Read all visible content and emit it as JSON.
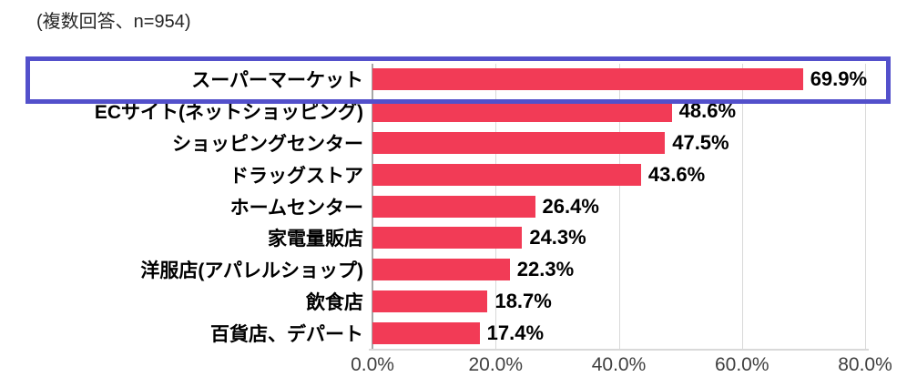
{
  "note": "(複数回答、n=954)",
  "colors": {
    "bar": "#F23B56",
    "highlight_border": "#5350CB",
    "gridline": "#D9D9D9",
    "axis_line": "#A6A6A6",
    "tick_text": "#404040"
  },
  "chart_data": {
    "type": "bar",
    "orientation": "horizontal",
    "title": "(複数回答、n=954)",
    "categories": [
      "スーパーマーケット",
      "ECサイト(ネットショッピング)",
      "ショッピングセンター",
      "ドラッグストア",
      "ホームセンター",
      "家電量販店",
      "洋服店(アパレルショップ)",
      "飲食店",
      "百貨店、デパート"
    ],
    "values": [
      69.9,
      48.6,
      47.5,
      43.6,
      26.4,
      24.3,
      22.3,
      18.7,
      17.4
    ],
    "value_labels": [
      "69.9%",
      "48.6%",
      "47.5%",
      "43.6%",
      "26.4%",
      "24.3%",
      "22.3%",
      "18.7%",
      "17.4%"
    ],
    "xlabel": "",
    "ylabel": "",
    "xlim": [
      0,
      80
    ],
    "x_ticks": [
      {
        "value": 0,
        "label": "0.0%"
      },
      {
        "value": 20,
        "label": "20.0%"
      },
      {
        "value": 40,
        "label": "40.0%"
      },
      {
        "value": 60,
        "label": "60.0%"
      },
      {
        "value": 80,
        "label": "80.0%"
      }
    ],
    "grid": true,
    "legend": false,
    "highlighted_category": "スーパーマーケット",
    "highlighted_index": 0
  }
}
